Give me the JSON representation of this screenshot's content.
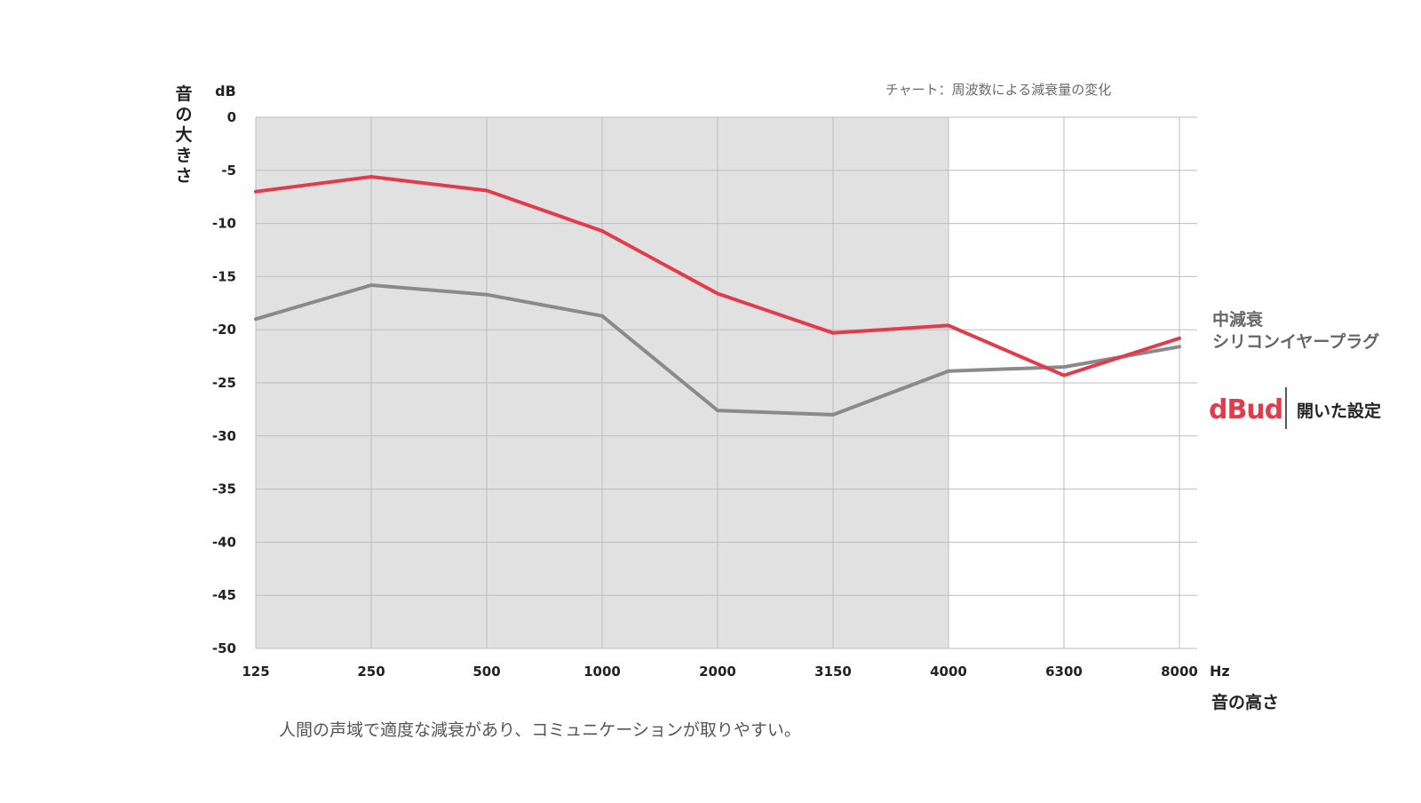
{
  "chart_data": {
    "type": "line",
    "title": "チャート：周波数による減衰量の変化",
    "ylabel": "音の大きさ",
    "yunit": "dB",
    "xlabel": "音の高さ",
    "xunit": "Hz",
    "categories": [
      "125",
      "250",
      "500",
      "1000",
      "2000",
      "3150",
      "4000",
      "6300",
      "8000"
    ],
    "yticks": [
      "0",
      "-5",
      "-10",
      "-15",
      "-20",
      "-25",
      "-30",
      "-35",
      "-40",
      "-45",
      "-50"
    ],
    "ylim": [
      -50,
      0
    ],
    "grid": true,
    "shaded_region": {
      "from": "125",
      "to": "4000",
      "color": "#e1e1e1"
    },
    "series": [
      {
        "name": "開いた設定",
        "brand": "dBud",
        "color": "#e23b4c",
        "values": [
          -7.0,
          -5.6,
          -6.9,
          -10.7,
          -16.6,
          -20.3,
          -19.6,
          -24.3,
          -20.8
        ]
      },
      {
        "name": "中減衰 シリコンイヤープラグ",
        "color": "#8a8a8a",
        "values": [
          -19.0,
          -15.8,
          -16.7,
          -18.7,
          -27.6,
          -28.0,
          -23.9,
          -23.5,
          -21.6
        ]
      }
    ],
    "annotation": "人間の声域で適度な減衰があり、コミュニケーションが取りやすい。"
  },
  "legend": {
    "gray_label_line1": "中減衰",
    "gray_label_line2": "シリコンイヤープラグ",
    "logo_text": "dBud",
    "red_label": "開いた設定"
  }
}
